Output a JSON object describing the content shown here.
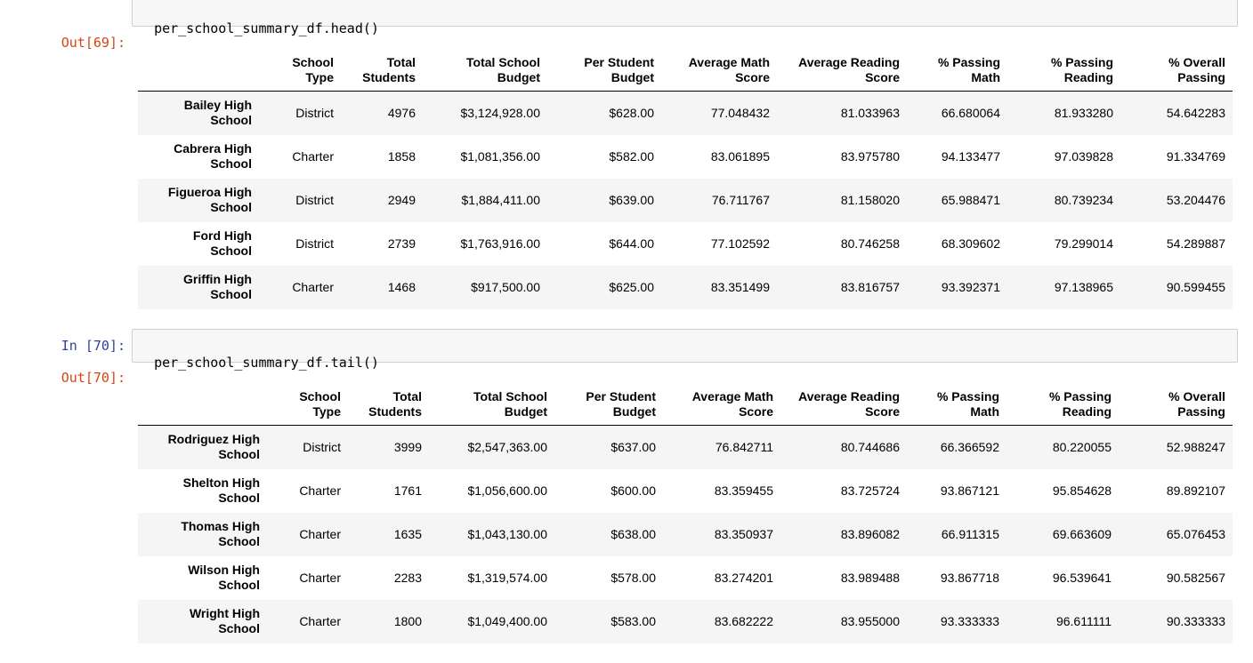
{
  "cell_top": {
    "code": "per_school_summary_df.head()"
  },
  "out1": {
    "prompt": "Out[69]:"
  },
  "in2": {
    "prompt": "In [70]:",
    "code": "per_school_summary_df.tail()"
  },
  "out2": {
    "prompt": "Out[70]:"
  },
  "columns": [
    {
      "line1": "School",
      "line2": "Type"
    },
    {
      "line1": "Total",
      "line2": "Students"
    },
    {
      "line1": "Total School",
      "line2": "Budget"
    },
    {
      "line1": "Per Student",
      "line2": "Budget"
    },
    {
      "line1": "Average Math",
      "line2": "Score"
    },
    {
      "line1": "Average Reading",
      "line2": "Score"
    },
    {
      "line1": "% Passing",
      "line2": "Math"
    },
    {
      "line1": "% Passing",
      "line2": "Reading"
    },
    {
      "line1": "% Overall",
      "line2": "Passing"
    }
  ],
  "head_rows": [
    {
      "name1": "Bailey High",
      "name2": "School",
      "cells": [
        "District",
        "4976",
        "$3,124,928.00",
        "$628.00",
        "77.048432",
        "81.033963",
        "66.680064",
        "81.933280",
        "54.642283"
      ]
    },
    {
      "name1": "Cabrera High",
      "name2": "School",
      "cells": [
        "Charter",
        "1858",
        "$1,081,356.00",
        "$582.00",
        "83.061895",
        "83.975780",
        "94.133477",
        "97.039828",
        "91.334769"
      ]
    },
    {
      "name1": "Figueroa High",
      "name2": "School",
      "cells": [
        "District",
        "2949",
        "$1,884,411.00",
        "$639.00",
        "76.711767",
        "81.158020",
        "65.988471",
        "80.739234",
        "53.204476"
      ]
    },
    {
      "name1": "Ford High",
      "name2": "School",
      "cells": [
        "District",
        "2739",
        "$1,763,916.00",
        "$644.00",
        "77.102592",
        "80.746258",
        "68.309602",
        "79.299014",
        "54.289887"
      ]
    },
    {
      "name1": "Griffin High",
      "name2": "School",
      "cells": [
        "Charter",
        "1468",
        "$917,500.00",
        "$625.00",
        "83.351499",
        "83.816757",
        "93.392371",
        "97.138965",
        "90.599455"
      ]
    }
  ],
  "tail_rows": [
    {
      "name1": "Rodriguez High",
      "name2": "School",
      "cells": [
        "District",
        "3999",
        "$2,547,363.00",
        "$637.00",
        "76.842711",
        "80.744686",
        "66.366592",
        "80.220055",
        "52.988247"
      ]
    },
    {
      "name1": "Shelton High",
      "name2": "School",
      "cells": [
        "Charter",
        "1761",
        "$1,056,600.00",
        "$600.00",
        "83.359455",
        "83.725724",
        "93.867121",
        "95.854628",
        "89.892107"
      ]
    },
    {
      "name1": "Thomas High",
      "name2": "School",
      "cells": [
        "Charter",
        "1635",
        "$1,043,130.00",
        "$638.00",
        "83.350937",
        "83.896082",
        "66.911315",
        "69.663609",
        "65.076453"
      ]
    },
    {
      "name1": "Wilson High",
      "name2": "School",
      "cells": [
        "Charter",
        "2283",
        "$1,319,574.00",
        "$578.00",
        "83.274201",
        "83.989488",
        "93.867718",
        "96.539641",
        "90.582567"
      ]
    },
    {
      "name1": "Wright High",
      "name2": "School",
      "cells": [
        "Charter",
        "1800",
        "$1,049,400.00",
        "$583.00",
        "83.682222",
        "83.955000",
        "93.333333",
        "96.611111",
        "90.333333"
      ]
    }
  ]
}
